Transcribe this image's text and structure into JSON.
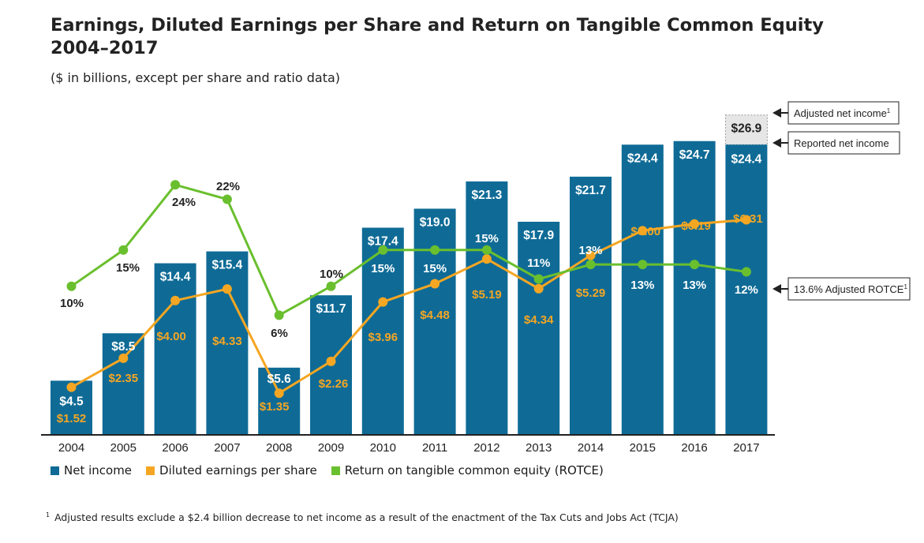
{
  "title_line1": "Earnings, Diluted Earnings per Share and Return on Tangible Common Equity",
  "title_line2": "2004–2017",
  "subtitle": "($ in billions, except per share and ratio data)",
  "colors": {
    "net_income": "#0f6b96",
    "eps": "#f5a623",
    "rotce": "#6abf2e",
    "adjusted_box": "#e6e6e6"
  },
  "legend": [
    {
      "label": "Net income",
      "color": "#0f6b96"
    },
    {
      "label": "Diluted earnings per share",
      "color": "#f5a623"
    },
    {
      "label": "Return on tangible common equity (ROTCE)",
      "color": "#6abf2e"
    }
  ],
  "footnote_marker": "1",
  "footnote": "Adjusted results exclude a $2.4 billion decrease to net income as a result of the enactment of the Tax Cuts and Jobs Act (TCJA)",
  "chart_data": {
    "type": "bar",
    "categories": [
      "2004",
      "2005",
      "2006",
      "2007",
      "2008",
      "2009",
      "2010",
      "2011",
      "2012",
      "2013",
      "2014",
      "2015",
      "2016",
      "2017"
    ],
    "series": [
      {
        "name": "Net income",
        "type": "bar",
        "values": [
          4.5,
          8.5,
          14.4,
          15.4,
          5.6,
          11.7,
          17.4,
          19.0,
          21.3,
          17.9,
          21.7,
          24.4,
          24.7,
          24.4
        ],
        "labels": [
          "$4.5",
          "$8.5",
          "$14.4",
          "$15.4",
          "$5.6",
          "$11.7",
          "$17.4",
          "$19.0",
          "$21.3",
          "$17.9",
          "$21.7",
          "$24.4",
          "$24.7",
          "$24.4"
        ]
      },
      {
        "name": "Diluted earnings per share",
        "type": "line",
        "values": [
          1.52,
          2.35,
          4.0,
          4.33,
          1.35,
          2.26,
          3.96,
          4.48,
          5.19,
          4.34,
          5.29,
          6.0,
          6.19,
          6.31
        ],
        "labels": [
          "$1.52",
          "$2.35",
          "$4.00",
          "$4.33",
          "$1.35",
          "$2.26",
          "$3.96",
          "$4.48",
          "$5.19",
          "$4.34",
          "$5.29",
          "$6.00",
          "$6.19",
          "$6.31"
        ]
      },
      {
        "name": "Return on tangible common equity (ROTCE)",
        "type": "line",
        "values": [
          10,
          15,
          24,
          22,
          6,
          10,
          15,
          15,
          15,
          11,
          13,
          13,
          13,
          12
        ],
        "labels": [
          "10%",
          "15%",
          "24%",
          "22%",
          "6%",
          "10%",
          "15%",
          "15%",
          "15%",
          "11%",
          "13%",
          "13%",
          "13%",
          "12%"
        ]
      }
    ],
    "adjusted_2017": {
      "value": 26.9,
      "label": "$26.9"
    },
    "callouts": {
      "adjusted": "Adjusted net income",
      "reported": "Reported net income",
      "rotce": "13.6% Adjusted ROTCE",
      "marker": "1"
    }
  }
}
